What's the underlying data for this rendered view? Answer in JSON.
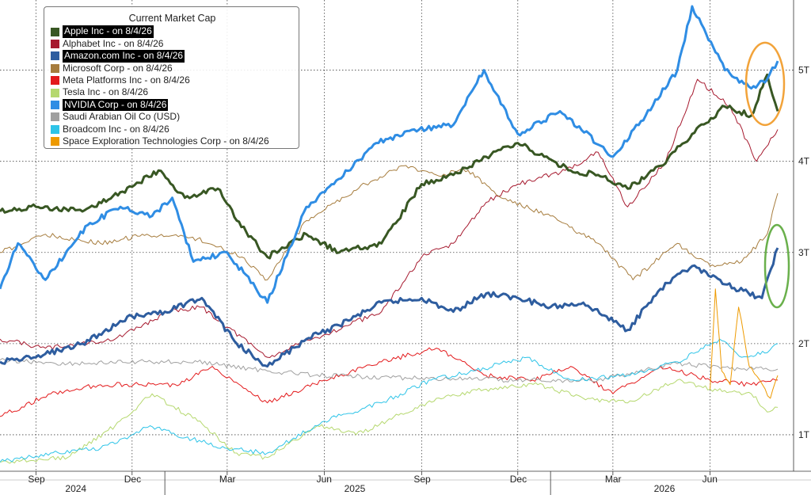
{
  "chart_data": {
    "type": "line",
    "legend": {
      "title": "Current Market Cap",
      "placement": "top-left",
      "entries": [
        {
          "label": "Apple Inc -  on 8/4/26",
          "color": "#385723",
          "highlight": true
        },
        {
          "label": "Alphabet Inc -  on 8/4/26",
          "color": "#a6192e",
          "highlight": false
        },
        {
          "label": "Amazon.com Inc -  on 8/4/26",
          "color": "#2e5d9f",
          "highlight": true
        },
        {
          "label": "Microsoft Corp -  on 8/4/26",
          "color": "#a67c3d",
          "highlight": false
        },
        {
          "label": "Meta Platforms Inc -  on 8/4/26",
          "color": "#e31a1c",
          "highlight": false
        },
        {
          "label": "Tesla Inc -  on 8/4/26",
          "color": "#b5d86e",
          "highlight": false
        },
        {
          "label": "NVIDIA Corp -  on 8/4/26",
          "color": "#2f8de4",
          "highlight": true
        },
        {
          "label": "Saudi Arabian Oil Co (USD)",
          "color": "#a0a0a0",
          "highlight": false
        },
        {
          "label": "Broadcom Inc -  on 8/4/26",
          "color": "#2ec4e8",
          "highlight": false
        },
        {
          "label": "Space Exploration Technologies Corp -  on 8/4/26",
          "color": "#ee9a00",
          "highlight": false
        }
      ]
    },
    "x_axis": {
      "months": [
        "Sep",
        "Dec",
        "Mar",
        "Jun",
        "Sep",
        "Dec",
        "Mar",
        "Jun"
      ],
      "years": [
        "2024",
        "2025",
        "2026"
      ],
      "range": [
        "2024-07-29",
        "2026-08-04"
      ]
    },
    "y_axis": {
      "ticks": [
        "1T",
        "2T",
        "3T",
        "4T",
        "5T"
      ],
      "tick_values": [
        1,
        2,
        3,
        4,
        5
      ],
      "range": [
        0.6,
        5.7
      ],
      "unit": "trillions USD",
      "position": "right"
    },
    "grid": true,
    "series": [
      {
        "name": "Apple Inc",
        "color": "#385723",
        "width": 3,
        "x": [
          "2024-07-29",
          "2024-09-01",
          "2024-10-15",
          "2024-12-01",
          "2024-12-26",
          "2025-01-20",
          "2025-02-20",
          "2025-03-10",
          "2025-04-08",
          "2025-05-15",
          "2025-06-15",
          "2025-07-25",
          "2025-09-01",
          "2025-10-01",
          "2025-11-01",
          "2025-12-01",
          "2025-12-26",
          "2026-01-20",
          "2026-02-15",
          "2026-03-15",
          "2026-04-15",
          "2026-05-15",
          "2026-06-15",
          "2026-07-10",
          "2026-07-25",
          "2026-08-04"
        ],
        "values": [
          3.45,
          3.5,
          3.45,
          3.72,
          3.9,
          3.6,
          3.7,
          3.35,
          2.95,
          3.2,
          3.0,
          3.1,
          3.75,
          3.85,
          4.05,
          4.2,
          4.05,
          3.9,
          3.85,
          3.7,
          3.95,
          4.3,
          4.6,
          4.5,
          4.95,
          4.55
        ]
      },
      {
        "name": "Alphabet Inc",
        "color": "#a6192e",
        "width": 1,
        "x": [
          "2024-07-29",
          "2024-09-10",
          "2024-11-15",
          "2025-01-05",
          "2025-02-05",
          "2025-04-08",
          "2025-06-01",
          "2025-07-25",
          "2025-09-01",
          "2025-10-01",
          "2025-11-01",
          "2025-12-01",
          "2026-01-15",
          "2026-02-15",
          "2026-03-15",
          "2026-04-20",
          "2026-05-20",
          "2026-06-20",
          "2026-07-15",
          "2026-08-04"
        ],
        "values": [
          2.05,
          1.95,
          2.05,
          2.35,
          2.4,
          1.85,
          2.1,
          2.35,
          2.95,
          3.1,
          3.55,
          3.75,
          3.9,
          4.1,
          3.5,
          4.0,
          4.9,
          4.6,
          4.0,
          4.35
        ]
      },
      {
        "name": "Amazon.com Inc",
        "color": "#2e5d9f",
        "width": 3,
        "x": [
          "2024-07-29",
          "2024-09-01",
          "2024-10-15",
          "2024-12-01",
          "2025-01-01",
          "2025-02-05",
          "2025-03-10",
          "2025-04-08",
          "2025-05-15",
          "2025-06-15",
          "2025-07-25",
          "2025-09-01",
          "2025-10-01",
          "2025-11-01",
          "2025-12-01",
          "2026-01-01",
          "2026-02-01",
          "2026-03-15",
          "2026-04-15",
          "2026-05-15",
          "2026-06-15",
          "2026-07-20",
          "2026-08-04"
        ],
        "values": [
          1.8,
          1.85,
          2.0,
          2.3,
          2.35,
          2.5,
          2.0,
          1.75,
          2.05,
          2.2,
          2.45,
          2.5,
          2.35,
          2.55,
          2.5,
          2.4,
          2.45,
          2.15,
          2.6,
          2.85,
          2.65,
          2.5,
          3.05
        ]
      },
      {
        "name": "Microsoft Corp",
        "color": "#a67c3d",
        "width": 1,
        "x": [
          "2024-07-29",
          "2024-09-10",
          "2024-11-01",
          "2024-12-15",
          "2025-02-01",
          "2025-03-15",
          "2025-04-08",
          "2025-05-15",
          "2025-07-10",
          "2025-08-15",
          "2025-09-15",
          "2025-10-15",
          "2025-11-15",
          "2026-01-01",
          "2026-02-15",
          "2026-03-20",
          "2026-05-01",
          "2026-06-01",
          "2026-07-01",
          "2026-07-25",
          "2026-08-04"
        ],
        "values": [
          3.0,
          3.2,
          3.1,
          3.2,
          3.15,
          2.95,
          2.7,
          3.35,
          3.75,
          3.95,
          3.85,
          3.9,
          3.6,
          3.4,
          3.1,
          2.7,
          3.1,
          2.85,
          2.9,
          3.2,
          3.65
        ]
      },
      {
        "name": "Meta Platforms Inc",
        "color": "#e31a1c",
        "width": 1,
        "x": [
          "2024-07-29",
          "2024-09-15",
          "2024-11-01",
          "2025-01-15",
          "2025-02-15",
          "2025-04-08",
          "2025-06-01",
          "2025-07-25",
          "2025-09-15",
          "2025-11-01",
          "2025-12-15",
          "2026-01-20",
          "2026-03-01",
          "2026-04-15",
          "2026-06-01",
          "2026-07-10",
          "2026-08-04"
        ],
        "values": [
          1.2,
          1.45,
          1.55,
          1.55,
          1.75,
          1.35,
          1.6,
          1.8,
          1.95,
          1.65,
          1.6,
          1.75,
          1.45,
          1.75,
          1.6,
          1.55,
          1.6
        ]
      },
      {
        "name": "Tesla Inc",
        "color": "#b5d86e",
        "width": 1,
        "x": [
          "2024-07-29",
          "2024-10-01",
          "2024-11-15",
          "2024-12-20",
          "2025-02-01",
          "2025-03-10",
          "2025-04-08",
          "2025-05-25",
          "2025-07-01",
          "2025-09-15",
          "2025-11-01",
          "2025-12-20",
          "2026-02-01",
          "2026-03-15",
          "2026-05-01",
          "2026-06-01",
          "2026-07-10",
          "2026-07-25",
          "2026-08-04"
        ],
        "values": [
          0.7,
          0.75,
          1.1,
          1.45,
          1.15,
          0.8,
          0.75,
          1.1,
          1.0,
          1.4,
          1.5,
          1.55,
          1.4,
          1.35,
          1.6,
          1.5,
          1.45,
          1.25,
          1.3
        ]
      },
      {
        "name": "NVIDIA Corp",
        "color": "#2f8de4",
        "width": 3,
        "x": [
          "2024-07-29",
          "2024-08-15",
          "2024-09-10",
          "2024-10-20",
          "2024-11-20",
          "2024-12-20",
          "2025-01-08",
          "2025-01-28",
          "2025-03-01",
          "2025-04-08",
          "2025-05-15",
          "2025-06-10",
          "2025-07-20",
          "2025-08-25",
          "2025-10-01",
          "2025-10-30",
          "2025-12-01",
          "2026-01-10",
          "2026-03-01",
          "2026-04-01",
          "2026-05-01",
          "2026-05-15",
          "2026-06-15",
          "2026-07-10",
          "2026-07-25",
          "2026-08-04"
        ],
        "values": [
          2.6,
          3.1,
          2.7,
          3.3,
          3.5,
          3.4,
          3.6,
          2.9,
          3.0,
          2.45,
          3.5,
          3.75,
          4.2,
          4.35,
          4.4,
          5.0,
          4.3,
          4.55,
          4.05,
          4.5,
          5.0,
          5.7,
          5.0,
          4.8,
          4.9,
          5.1
        ]
      },
      {
        "name": "Saudi Arabian Oil Co (USD)",
        "color": "#a0a0a0",
        "width": 1,
        "x": [
          "2024-07-29",
          "2024-10-01",
          "2024-12-15",
          "2025-02-01",
          "2025-04-08",
          "2025-06-01",
          "2025-09-01",
          "2025-12-01",
          "2026-02-15",
          "2026-05-01",
          "2026-07-01",
          "2026-08-04"
        ],
        "values": [
          1.82,
          1.78,
          1.8,
          1.8,
          1.7,
          1.65,
          1.62,
          1.6,
          1.6,
          1.78,
          1.72,
          1.72
        ]
      },
      {
        "name": "Broadcom Inc",
        "color": "#2ec4e8",
        "width": 1,
        "x": [
          "2024-07-29",
          "2024-09-15",
          "2024-11-01",
          "2024-12-01",
          "2024-12-18",
          "2025-01-27",
          "2025-03-01",
          "2025-04-08",
          "2025-06-01",
          "2025-07-25",
          "2025-09-10",
          "2025-10-20",
          "2025-12-10",
          "2026-01-20",
          "2026-03-15",
          "2026-05-01",
          "2026-06-10",
          "2026-07-01",
          "2026-07-25",
          "2026-08-04"
        ],
        "values": [
          0.7,
          0.8,
          0.85,
          1.0,
          1.1,
          0.95,
          0.85,
          0.8,
          1.15,
          1.35,
          1.6,
          1.7,
          1.85,
          1.6,
          1.65,
          1.8,
          2.05,
          1.85,
          1.9,
          2.0
        ]
      },
      {
        "name": "Space Exploration Technologies Corp",
        "color": "#ee9a00",
        "width": 1,
        "x": [
          "2026-06-01",
          "2026-06-06",
          "2026-06-12",
          "2026-06-20",
          "2026-06-28",
          "2026-07-08",
          "2026-07-18",
          "2026-07-28",
          "2026-08-04"
        ],
        "values": [
          1.5,
          2.6,
          1.7,
          1.55,
          2.4,
          1.75,
          1.6,
          1.4,
          1.65
        ]
      }
    ],
    "annotations": [
      {
        "type": "ellipse",
        "color": "#f2a33a",
        "around": "Apple Inc / NVIDIA Corp latest values"
      },
      {
        "type": "ellipse",
        "color": "#6ab04c",
        "around": "Amazon.com Inc latest value"
      }
    ]
  }
}
